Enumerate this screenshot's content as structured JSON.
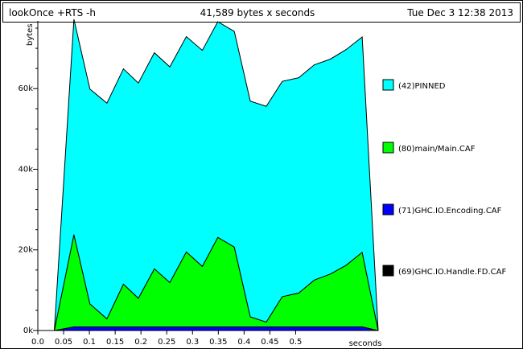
{
  "header": {
    "program": "lookOnce +RTS -h",
    "summary": "41,589 bytes x seconds",
    "date": "Tue Dec  3 12:38 2013"
  },
  "chart_data": {
    "type": "area",
    "stacked": true,
    "ylabel": "bytes",
    "xlabel": "seconds",
    "xlim": [
      0,
      0.66
    ],
    "ylim": [
      0,
      76000
    ],
    "y_ticks": [
      {
        "value": 0,
        "label": "0k"
      },
      {
        "value": 20000,
        "label": "20k"
      },
      {
        "value": 40000,
        "label": "40k"
      },
      {
        "value": 60000,
        "label": "60k"
      }
    ],
    "x_ticks": [
      {
        "value": 0.0,
        "label": "0.0"
      },
      {
        "value": 0.05,
        "label": "0.05"
      },
      {
        "value": 0.1,
        "label": "0.1"
      },
      {
        "value": 0.15,
        "label": "0.15"
      },
      {
        "value": 0.2,
        "label": "0.2"
      },
      {
        "value": 0.25,
        "label": "0.25"
      },
      {
        "value": 0.3,
        "label": "0.3"
      },
      {
        "value": 0.35,
        "label": "0.35"
      },
      {
        "value": 0.4,
        "label": "0.4"
      },
      {
        "value": 0.45,
        "label": "0.45"
      },
      {
        "value": 0.5,
        "label": "0.5"
      }
    ],
    "x": [
      0.0,
      0.032,
      0.07,
      0.101,
      0.134,
      0.166,
      0.195,
      0.226,
      0.256,
      0.288,
      0.319,
      0.349,
      0.381,
      0.412,
      0.443,
      0.474,
      0.506,
      0.536,
      0.567,
      0.598,
      0.629,
      0.66
    ],
    "series": [
      {
        "name": "(69)GHC.IO.Handle.FD.CAF",
        "color": "#000000",
        "values": [
          0,
          0,
          0,
          0,
          0,
          0,
          0,
          0,
          0,
          0,
          0,
          0,
          0,
          0,
          0,
          0,
          0,
          0,
          0,
          0,
          0,
          0
        ]
      },
      {
        "name": "(71)GHC.IO.Encoding.CAF",
        "color": "#0000ff",
        "values": [
          0,
          0,
          900,
          900,
          900,
          900,
          900,
          900,
          900,
          900,
          900,
          900,
          900,
          900,
          900,
          900,
          900,
          900,
          900,
          900,
          900,
          0
        ]
      },
      {
        "name": "(80)main/Main.CAF",
        "color": "#00ff00",
        "values": [
          0,
          0,
          22900,
          5700,
          2000,
          10600,
          7100,
          14400,
          11000,
          18600,
          15000,
          22200,
          19800,
          2500,
          1200,
          7500,
          8400,
          11600,
          13100,
          15300,
          18500,
          0
        ]
      },
      {
        "name": "(42)PINNED",
        "color": "#00ffff",
        "values": [
          0,
          0,
          53400,
          53300,
          53500,
          53400,
          53400,
          53600,
          53500,
          53400,
          53600,
          53500,
          53500,
          53500,
          53500,
          53400,
          53400,
          53400,
          53300,
          53500,
          53400,
          0
        ]
      }
    ],
    "legend_position": "right"
  }
}
